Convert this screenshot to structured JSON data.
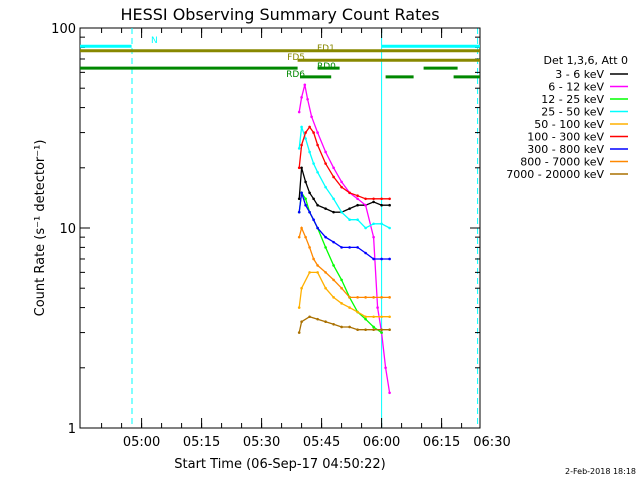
{
  "chart_data": {
    "type": "line",
    "title": "HESSI Observing Summary Count Rates",
    "xlabel": "Start Time (06-Sep-17 04:50:22)",
    "ylabel": "Count Rate (s⁻¹ detector⁻¹)",
    "ylog": true,
    "ylim": [
      1,
      100
    ],
    "xlim_minutes": [
      -5.4,
      94.6
    ],
    "x_ticks": [
      {
        "label": "05:00",
        "minute": 10
      },
      {
        "label": "05:15",
        "minute": 25
      },
      {
        "label": "05:30",
        "minute": 40
      },
      {
        "label": "05:45",
        "minute": 55
      },
      {
        "label": "06:00",
        "minute": 70
      },
      {
        "label": "06:15",
        "minute": 85
      },
      {
        "label": "06:30",
        "minute": 100
      }
    ],
    "y_ticks": [
      {
        "label": "1",
        "value": 1
      },
      {
        "label": "10",
        "value": 10
      },
      {
        "label": "100",
        "value": 100
      }
    ],
    "legend_header": "Det 1,3,6, Att 0",
    "legend_position": "right",
    "series": [
      {
        "name": "3 - 6 keV",
        "color": "#000000",
        "points": [
          [
            49.4,
            14
          ],
          [
            50,
            20
          ],
          [
            51,
            17
          ],
          [
            52,
            15
          ],
          [
            53,
            14
          ],
          [
            54,
            13
          ],
          [
            56,
            12.5
          ],
          [
            58,
            12
          ],
          [
            60,
            12
          ],
          [
            62,
            12.5
          ],
          [
            64,
            13
          ],
          [
            66,
            13
          ],
          [
            68,
            13.5
          ],
          [
            70,
            13
          ],
          [
            72,
            13
          ]
        ]
      },
      {
        "name": "6 - 12 keV",
        "color": "#ff00ff",
        "points": [
          [
            49.4,
            38
          ],
          [
            50,
            45
          ],
          [
            50.8,
            52
          ],
          [
            51.5,
            44
          ],
          [
            52.5,
            36
          ],
          [
            54,
            30
          ],
          [
            56,
            24
          ],
          [
            58,
            20
          ],
          [
            60,
            17
          ],
          [
            62,
            15
          ],
          [
            64,
            14
          ],
          [
            66,
            13
          ],
          [
            68,
            9
          ],
          [
            69,
            4
          ],
          [
            70,
            3
          ],
          [
            71,
            2
          ],
          [
            72,
            1.5
          ]
        ]
      },
      {
        "name": "12 - 25 keV",
        "color": "#00ff00",
        "points": [
          [
            49.4,
            12
          ],
          [
            50,
            15
          ],
          [
            51,
            14
          ],
          [
            52,
            12
          ],
          [
            54,
            10
          ],
          [
            56,
            8
          ],
          [
            58,
            6.5
          ],
          [
            60,
            5.5
          ],
          [
            62,
            4.5
          ],
          [
            64,
            3.8
          ],
          [
            66,
            3.5
          ],
          [
            68,
            3.2
          ],
          [
            70,
            3
          ]
        ]
      },
      {
        "name": "25 - 50 keV",
        "color": "#00ffff",
        "points": [
          [
            49.4,
            25
          ],
          [
            50,
            32
          ],
          [
            51,
            28
          ],
          [
            52,
            24
          ],
          [
            53,
            21
          ],
          [
            54,
            19
          ],
          [
            56,
            16
          ],
          [
            58,
            14
          ],
          [
            60,
            12
          ],
          [
            62,
            11
          ],
          [
            64,
            11
          ],
          [
            66,
            10
          ],
          [
            68,
            10.5
          ],
          [
            70,
            10.5
          ],
          [
            72,
            10
          ]
        ]
      },
      {
        "name": "50 - 100 keV",
        "color": "#ffb000",
        "points": [
          [
            49.4,
            4
          ],
          [
            50,
            5
          ],
          [
            52,
            6
          ],
          [
            54,
            6
          ],
          [
            56,
            5
          ],
          [
            58,
            4.5
          ],
          [
            60,
            4.2
          ],
          [
            62,
            4
          ],
          [
            64,
            3.8
          ],
          [
            66,
            3.6
          ],
          [
            68,
            3.6
          ],
          [
            70,
            3.6
          ],
          [
            72,
            3.6
          ]
        ]
      },
      {
        "name": "100 - 300 keV",
        "color": "#ff0000",
        "points": [
          [
            49.4,
            20
          ],
          [
            50,
            26
          ],
          [
            51,
            30
          ],
          [
            52,
            32
          ],
          [
            53,
            30
          ],
          [
            54,
            26
          ],
          [
            56,
            21
          ],
          [
            58,
            18
          ],
          [
            60,
            16
          ],
          [
            62,
            15
          ],
          [
            64,
            14.5
          ],
          [
            66,
            14
          ],
          [
            68,
            14
          ],
          [
            70,
            14
          ],
          [
            72,
            14
          ]
        ]
      },
      {
        "name": "300 - 800 keV",
        "color": "#0000ff",
        "points": [
          [
            49.4,
            12
          ],
          [
            50,
            15
          ],
          [
            51,
            13
          ],
          [
            52,
            12
          ],
          [
            53,
            11
          ],
          [
            54,
            10
          ],
          [
            56,
            9
          ],
          [
            58,
            8.5
          ],
          [
            60,
            8
          ],
          [
            62,
            8
          ],
          [
            64,
            8
          ],
          [
            66,
            7.5
          ],
          [
            68,
            7
          ],
          [
            70,
            7
          ],
          [
            72,
            7
          ]
        ]
      },
      {
        "name": "800 - 7000 keV",
        "color": "#ff8800",
        "points": [
          [
            49.4,
            9
          ],
          [
            50,
            10
          ],
          [
            51,
            9
          ],
          [
            52,
            8
          ],
          [
            53,
            7
          ],
          [
            54,
            6.5
          ],
          [
            56,
            6
          ],
          [
            58,
            5.5
          ],
          [
            60,
            5
          ],
          [
            62,
            4.5
          ],
          [
            64,
            4.5
          ],
          [
            66,
            4.5
          ],
          [
            68,
            4.5
          ],
          [
            70,
            4.5
          ],
          [
            72,
            4.5
          ]
        ]
      },
      {
        "name": "7000 - 20000 keV",
        "color": "#aa7000",
        "points": [
          [
            49.4,
            3
          ],
          [
            50,
            3.4
          ],
          [
            52,
            3.6
          ],
          [
            54,
            3.5
          ],
          [
            56,
            3.4
          ],
          [
            58,
            3.3
          ],
          [
            60,
            3.2
          ],
          [
            62,
            3.2
          ],
          [
            64,
            3.1
          ],
          [
            66,
            3.1
          ],
          [
            68,
            3.1
          ],
          [
            70,
            3.1
          ],
          [
            72,
            3.1
          ]
        ]
      }
    ],
    "status_bars": [
      {
        "label": "N",
        "color": "#00ffff",
        "level": 81,
        "segments": [
          [
            -5.4,
            7.5
          ],
          [
            70,
            94.6
          ]
        ]
      },
      {
        "label": "FD1",
        "color": "#888800",
        "level": 77,
        "segments": [
          [
            -5.4,
            94.6
          ]
        ]
      },
      {
        "label": "FD5",
        "color": "#888800",
        "level": 69,
        "segments": [
          [
            49,
            94.6
          ]
        ]
      },
      {
        "label": "RD0",
        "color": "#008800",
        "level": 63,
        "segments": [
          [
            -5.4,
            49
          ],
          [
            54,
            59.5
          ],
          [
            80.5,
            89
          ]
        ]
      },
      {
        "label": "RD6",
        "color": "#008800",
        "level": 57,
        "segments": [
          [
            49.6,
            57.4
          ],
          [
            71,
            78
          ],
          [
            88,
            94.6
          ]
        ]
      }
    ],
    "vertical_lines": [
      {
        "minute": 7.6,
        "color": "#00ffff",
        "style": "dashed"
      },
      {
        "minute": 70,
        "color": "#00ffff",
        "style": "solid"
      },
      {
        "minute": 94,
        "color": "#00ffff",
        "style": "dashed"
      }
    ]
  },
  "footer": {
    "date_stamp": "2-Feb-2018 18:18"
  }
}
